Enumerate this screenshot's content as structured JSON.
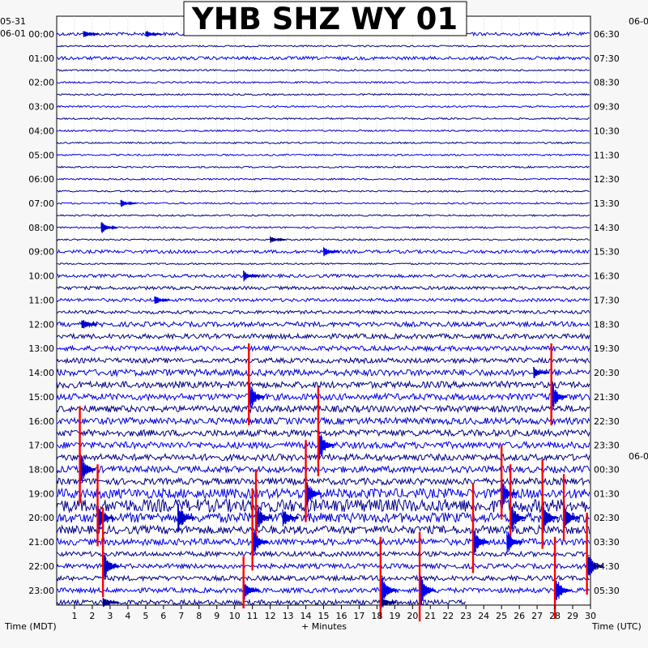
{
  "header": {
    "title": "YHB SHZ WY 01",
    "left_date_top": "05-31",
    "left_date_bottom": "06-01",
    "right_date_top": "06-0",
    "right_date_mid": "06-0"
  },
  "chart_data": {
    "type": "helicorder",
    "title": "YHB SHZ WY 01",
    "xlabel": "+ Minutes",
    "left_axis_label": "Time (MDT)",
    "right_axis_label": "Time (UTC)",
    "x_ticks": [
      "1",
      "2",
      "3",
      "4",
      "5",
      "6",
      "7",
      "8",
      "9",
      "10",
      "11",
      "12",
      "13",
      "14",
      "15",
      "16",
      "17",
      "18",
      "19",
      "20",
      "21",
      "22",
      "23",
      "24",
      "25",
      "26",
      "27",
      "28",
      "29",
      "30"
    ],
    "xlim": [
      0,
      30
    ],
    "rows_per_hour": 2,
    "row_count": 48,
    "left_hour_labels": [
      "00:00",
      "01:00",
      "02:00",
      "03:00",
      "04:00",
      "05:00",
      "06:00",
      "07:00",
      "08:00",
      "09:00",
      "10:00",
      "11:00",
      "12:00",
      "13:00",
      "14:00",
      "15:00",
      "16:00",
      "17:00",
      "18:00",
      "19:00",
      "20:00",
      "21:00",
      "22:00",
      "23:00"
    ],
    "right_hour_labels": [
      "06:30",
      "07:30",
      "08:30",
      "09:30",
      "10:30",
      "11:30",
      "12:30",
      "13:30",
      "14:30",
      "15:30",
      "16:30",
      "17:30",
      "18:30",
      "19:30",
      "20:30",
      "21:30",
      "22:30",
      "23:30",
      "00:30",
      "01:30",
      "02:30",
      "03:30",
      "04:30",
      "05:30"
    ],
    "trace_colors": [
      "#0000cc",
      "#000080",
      "#0000ee",
      "#00008b"
    ],
    "clip_color": "#ff0000",
    "grid": true,
    "noise_by_row": [
      2,
      1,
      2,
      1,
      1,
      1,
      1,
      1,
      1,
      1,
      1,
      1,
      1,
      1,
      1,
      1,
      1,
      1,
      2,
      1,
      2,
      2,
      2,
      2,
      3,
      3,
      3,
      3,
      4,
      4,
      4,
      4,
      4,
      4,
      4,
      4,
      4,
      4,
      6,
      8,
      6,
      5,
      4,
      3,
      3,
      3,
      3,
      3
    ],
    "events": [
      {
        "row": 0,
        "minute": 1.5,
        "amp": 6
      },
      {
        "row": 0,
        "minute": 5,
        "amp": 5
      },
      {
        "row": 14,
        "minute": 3.6,
        "amp": 6
      },
      {
        "row": 16,
        "minute": 2.5,
        "amp": 8
      },
      {
        "row": 17,
        "minute": 12,
        "amp": 5
      },
      {
        "row": 18,
        "minute": 15,
        "amp": 7
      },
      {
        "row": 20,
        "minute": 10.5,
        "amp": 7
      },
      {
        "row": 22,
        "minute": 5.5,
        "amp": 6
      },
      {
        "row": 24,
        "minute": 1.4,
        "amp": 8
      },
      {
        "row": 28,
        "minute": 26.8,
        "amp": 8
      },
      {
        "row": 30,
        "minute": 10.8,
        "amp": 22,
        "clip": true
      },
      {
        "row": 30,
        "minute": 27.8,
        "amp": 22,
        "clip": true
      },
      {
        "row": 34,
        "minute": 14.7,
        "amp": 24,
        "clip": true
      },
      {
        "row": 36,
        "minute": 1.3,
        "amp": 26,
        "clip": true
      },
      {
        "row": 38,
        "minute": 14,
        "amp": 22,
        "clip": true
      },
      {
        "row": 38,
        "minute": 25,
        "amp": 20,
        "clip": true
      },
      {
        "row": 40,
        "minute": 2.3,
        "amp": 22,
        "clip": true
      },
      {
        "row": 40,
        "minute": 6.8,
        "amp": 22
      },
      {
        "row": 40,
        "minute": 11.2,
        "amp": 20,
        "clip": true
      },
      {
        "row": 40,
        "minute": 12.7,
        "amp": 14
      },
      {
        "row": 40,
        "minute": 25.5,
        "amp": 22,
        "clip": true
      },
      {
        "row": 40,
        "minute": 27.3,
        "amp": 24,
        "clip": true
      },
      {
        "row": 40,
        "minute": 28.5,
        "amp": 18,
        "clip": true
      },
      {
        "row": 42,
        "minute": 23.4,
        "amp": 24,
        "clip": true
      },
      {
        "row": 42,
        "minute": 11,
        "amp": 22,
        "clip": true
      },
      {
        "row": 42,
        "minute": 25.3,
        "amp": 18
      },
      {
        "row": 44,
        "minute": 2.6,
        "amp": 24,
        "clip": true
      },
      {
        "row": 44,
        "minute": 29.8,
        "amp": 22,
        "clip": true
      },
      {
        "row": 46,
        "minute": 18.2,
        "amp": 22,
        "clip": true
      },
      {
        "row": 46,
        "minute": 20.4,
        "amp": 24,
        "clip": true
      },
      {
        "row": 46,
        "minute": 28,
        "amp": 22,
        "clip": true
      },
      {
        "row": 46,
        "minute": 10.5,
        "amp": 14,
        "clip": true
      },
      {
        "row": 47,
        "minute": 2.6,
        "amp": 8
      },
      {
        "row": 47,
        "minute": 18.2,
        "amp": 10,
        "clip": true
      }
    ],
    "last_row_end_minute": 23
  }
}
